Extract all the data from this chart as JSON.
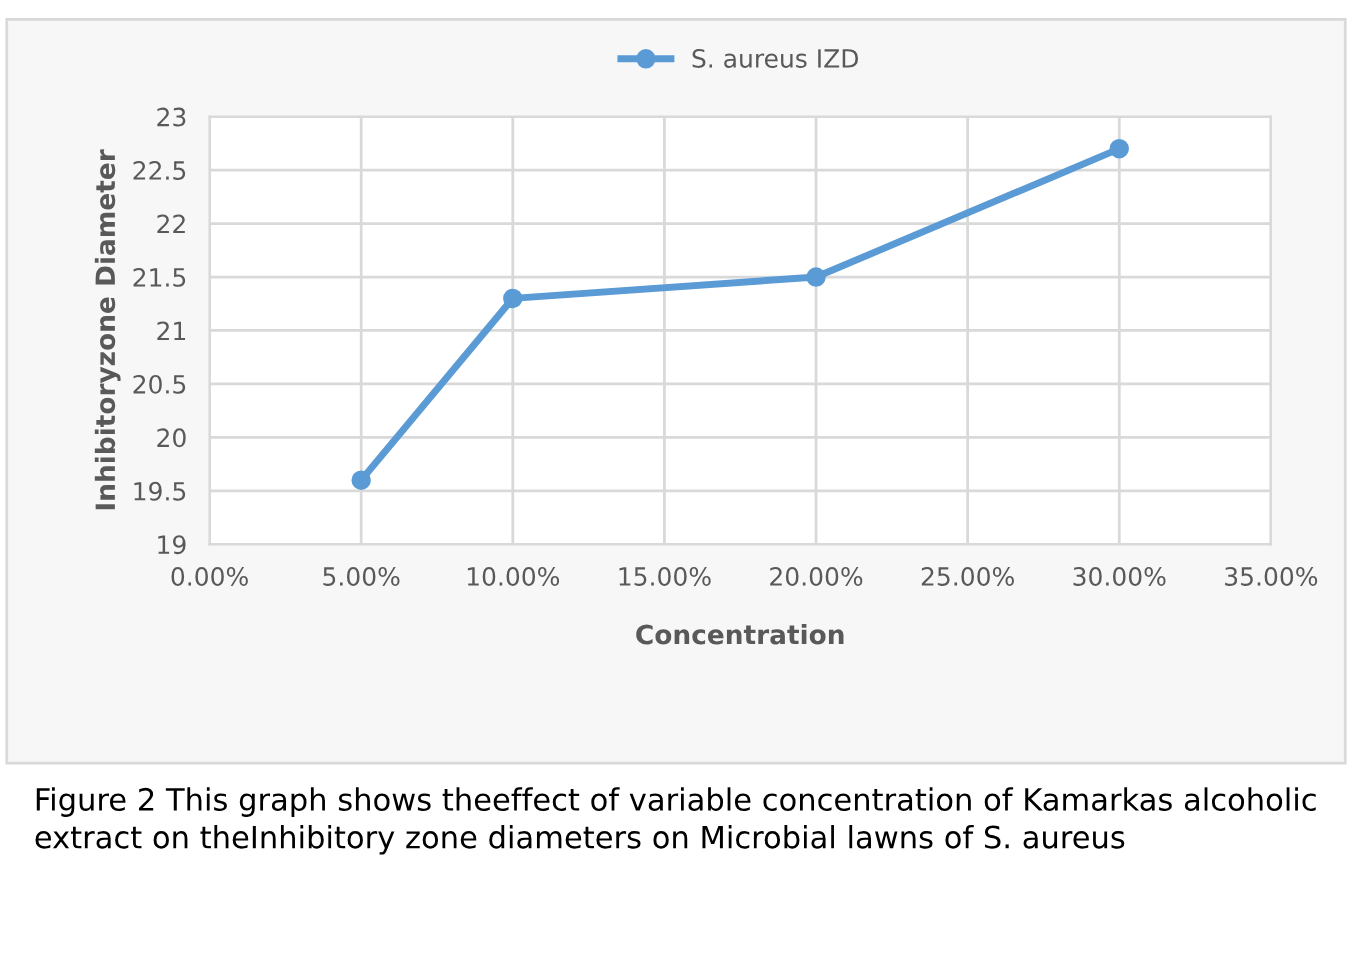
{
  "chart_data": {
    "type": "line",
    "xlabel": "Concentration",
    "ylabel": "Inhibitoryzone Diameter",
    "x": [
      0.05,
      0.1,
      0.2,
      0.3
    ],
    "series": [
      {
        "name": "S. aureus IZD",
        "color": "#5b9bd5",
        "values": [
          19.6,
          21.3,
          21.5,
          22.7
        ]
      }
    ],
    "xlim": [
      0,
      0.35
    ],
    "xticks": [
      {
        "value": 0,
        "label": "0.00%"
      },
      {
        "value": 0.05,
        "label": "5.00%"
      },
      {
        "value": 0.1,
        "label": "10.00%"
      },
      {
        "value": 0.15,
        "label": "15.00%"
      },
      {
        "value": 0.2,
        "label": "20.00%"
      },
      {
        "value": 0.25,
        "label": "25.00%"
      },
      {
        "value": 0.3,
        "label": "30.00%"
      },
      {
        "value": 0.35,
        "label": "35.00%"
      }
    ],
    "ylim": [
      19,
      23
    ],
    "yticks": [
      19,
      19.5,
      20,
      20.5,
      21,
      21.5,
      22,
      22.5,
      23
    ],
    "grid": true,
    "legend": "top",
    "marker": "circle",
    "line_style": "solid",
    "annotations": [
      "Figure 2 This graph shows theeffect of variable concentration of Kamarkas alcoholic extract on theInhibitory zone diameters on Microbial lawns of S. aureus"
    ]
  }
}
